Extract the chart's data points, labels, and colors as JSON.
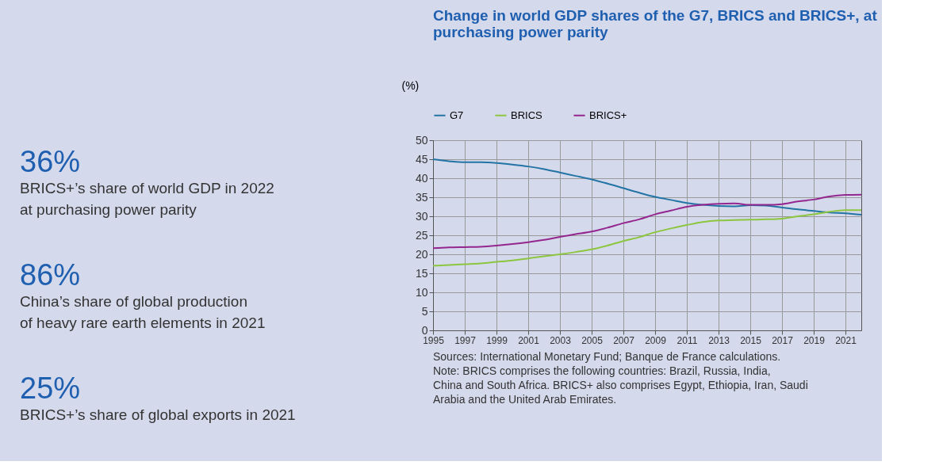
{
  "chart_data": [
    {
      "type": "other",
      "annotations": [
        "36%",
        "BRICS+’s share of world GDP in 2022\nat purchasing power parity",
        "86%",
        "China’s share of global production\nof heavy rare earth elements in 2021",
        "25%",
        "BRICS+’s share of global exports in 2021"
      ]
    },
    {
      "type": "line",
      "title": "Change in world GDP shares of the G7, BRICS and BRICS+, at purchasing power parity",
      "ylabel": "(%)",
      "x": [
        1995,
        1996,
        1997,
        1998,
        1999,
        2000,
        2001,
        2002,
        2003,
        2004,
        2005,
        2006,
        2007,
        2008,
        2009,
        2010,
        2011,
        2012,
        2013,
        2014,
        2015,
        2016,
        2017,
        2018,
        2019,
        2020,
        2021,
        2022
      ],
      "series": [
        {
          "name": "G7",
          "color": "#2274a5",
          "values": [
            45,
            44.5,
            44.2,
            44.2,
            44,
            43.6,
            43.1,
            42.4,
            41.5,
            40.6,
            39.7,
            38.6,
            37.4,
            36.2,
            35.1,
            34.3,
            33.5,
            33,
            32.7,
            32.6,
            32.9,
            32.8,
            32.3,
            31.8,
            31.4,
            31,
            30.8,
            30.4
          ]
        },
        {
          "name": "BRICS",
          "color": "#8cc63f",
          "values": [
            17,
            17.2,
            17.4,
            17.6,
            18,
            18.4,
            18.9,
            19.5,
            20,
            20.6,
            21.3,
            22.3,
            23.5,
            24.5,
            25.8,
            26.8,
            27.7,
            28.5,
            28.9,
            29,
            29.1,
            29.2,
            29.4,
            30,
            30.5,
            31.2,
            31.6,
            31.6
          ]
        },
        {
          "name": "BRICS+",
          "color": "#93278f",
          "values": [
            21.6,
            21.8,
            21.9,
            22,
            22.3,
            22.7,
            23.2,
            23.8,
            24.6,
            25.3,
            26,
            27,
            28.2,
            29.2,
            30.5,
            31.5,
            32.5,
            33,
            33.3,
            33.4,
            33,
            33,
            33.2,
            33.9,
            34.4,
            35.2,
            35.6,
            35.7
          ]
        }
      ],
      "xlim": [
        1995,
        2022
      ],
      "xticks": [
        1995,
        1997,
        1999,
        2001,
        2003,
        2005,
        2007,
        2009,
        2011,
        2013,
        2015,
        2017,
        2019,
        2021
      ],
      "ylim": [
        0,
        50
      ],
      "yticks": [
        0,
        5,
        10,
        15,
        20,
        25,
        30,
        35,
        40,
        45,
        50
      ],
      "grid": true,
      "legend": "top left",
      "marker": "none",
      "line_style": "solid",
      "annotations": [
        "Sources: International Monetary Fund; Banque de France calculations.",
        "Note: BRICS comprises the following countries: Brazil, Russia, India, China and South Africa. BRICS+ also comprises Egypt, Ethiopia, Iran, Saudi Arabia and the United Arab Emirates."
      ]
    }
  ]
}
